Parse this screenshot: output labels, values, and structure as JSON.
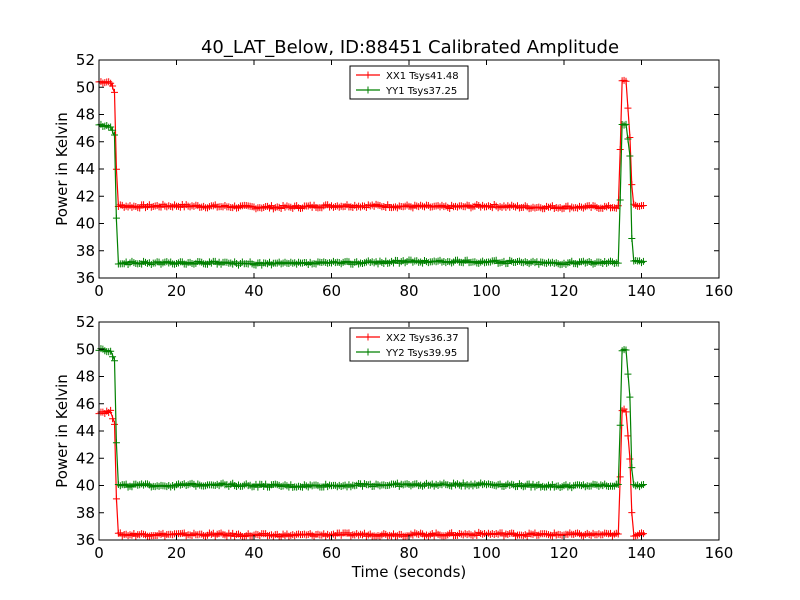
{
  "title": "40_LAT_Below, ID:88451 Calibrated Amplitude",
  "chart_data": [
    {
      "type": "line",
      "ylabel": "Power in Kelvin",
      "xlabel": "",
      "xlim": [
        0,
        160
      ],
      "ylim": [
        36,
        52
      ],
      "xticks": [
        "0",
        "20",
        "40",
        "60",
        "80",
        "100",
        "120",
        "140",
        "160"
      ],
      "yticks": [
        "36",
        "38",
        "40",
        "42",
        "44",
        "46",
        "48",
        "50",
        "52"
      ],
      "grid": false,
      "legend_position": "top-center",
      "series": [
        {
          "name": "XX1 Tsys41.48",
          "color": "#ff0000",
          "x": [
            0,
            1,
            2,
            3,
            4,
            4.5,
            5,
            10,
            20,
            30,
            40,
            50,
            60,
            70,
            80,
            90,
            100,
            110,
            120,
            130,
            134,
            134.5,
            135,
            136,
            137,
            137.5,
            138,
            139,
            140,
            141
          ],
          "y": [
            50.4,
            50.4,
            50.4,
            50.4,
            49.6,
            44.0,
            41.3,
            41.25,
            41.3,
            41.25,
            41.2,
            41.2,
            41.3,
            41.3,
            41.25,
            41.2,
            41.3,
            41.2,
            41.2,
            41.2,
            41.2,
            45.4,
            50.4,
            50.5,
            46.4,
            42.8,
            41.3,
            41.3,
            41.3,
            41.3
          ]
        },
        {
          "name": "YY1 Tsys37.25",
          "color": "#008000",
          "x": [
            0,
            1,
            2,
            3,
            4,
            4.5,
            5,
            10,
            20,
            30,
            40,
            50,
            60,
            70,
            80,
            90,
            100,
            110,
            120,
            130,
            134,
            134.5,
            135,
            136,
            137,
            137.5,
            138,
            139,
            140,
            141
          ],
          "y": [
            47.2,
            47.2,
            47.1,
            47.1,
            46.4,
            40.3,
            37.1,
            37.1,
            37.1,
            37.1,
            37.05,
            37.05,
            37.1,
            37.15,
            37.2,
            37.2,
            37.2,
            37.15,
            37.1,
            37.15,
            37.2,
            41.8,
            47.3,
            47.3,
            45.0,
            39.0,
            37.2,
            37.2,
            37.2,
            37.2
          ]
        }
      ]
    },
    {
      "type": "line",
      "ylabel": "Power in Kelvin",
      "xlabel": "Time (seconds)",
      "xlim": [
        0,
        160
      ],
      "ylim": [
        36,
        52
      ],
      "xticks": [
        "0",
        "20",
        "40",
        "60",
        "80",
        "100",
        "120",
        "140",
        "160"
      ],
      "yticks": [
        "36",
        "38",
        "40",
        "42",
        "44",
        "46",
        "48",
        "50",
        "52"
      ],
      "grid": false,
      "legend_position": "top-center",
      "series": [
        {
          "name": "XX2 Tsys36.37",
          "color": "#ff0000",
          "x": [
            0,
            1,
            2,
            3,
            4,
            4.5,
            5,
            10,
            20,
            30,
            40,
            50,
            60,
            70,
            80,
            90,
            100,
            110,
            120,
            130,
            134,
            134.5,
            135,
            136,
            137,
            137.5,
            138,
            139,
            140,
            141
          ],
          "y": [
            45.4,
            45.4,
            45.4,
            45.4,
            44.6,
            39.1,
            36.4,
            36.4,
            36.4,
            36.4,
            36.35,
            36.35,
            36.4,
            36.4,
            36.4,
            36.4,
            36.45,
            36.4,
            36.4,
            36.4,
            36.4,
            40.6,
            45.5,
            45.5,
            42.0,
            38.0,
            36.4,
            36.4,
            36.4,
            36.4
          ]
        },
        {
          "name": "YY2 Tsys39.95",
          "color": "#008000",
          "x": [
            0,
            1,
            2,
            3,
            4,
            4.5,
            5,
            10,
            20,
            30,
            40,
            50,
            60,
            70,
            80,
            90,
            100,
            110,
            120,
            130,
            134,
            134.5,
            135,
            136,
            137,
            137.5,
            138,
            139,
            140,
            141
          ],
          "y": [
            50.0,
            50.0,
            49.9,
            49.9,
            49.2,
            43.1,
            40.0,
            40.0,
            40.0,
            40.1,
            40.0,
            39.95,
            40.0,
            40.05,
            40.05,
            40.05,
            40.1,
            40.0,
            39.95,
            40.0,
            40.0,
            44.5,
            50.0,
            50.0,
            46.5,
            41.2,
            40.0,
            40.0,
            40.0,
            40.0
          ]
        }
      ]
    }
  ]
}
